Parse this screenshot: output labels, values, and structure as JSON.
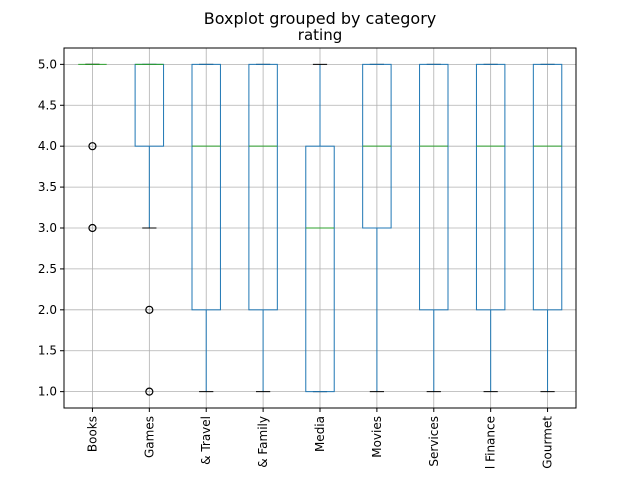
{
  "chart_data": {
    "type": "boxplot",
    "suptitle": "Boxplot grouped by category",
    "title": "rating",
    "xlabel": "",
    "ylabel": "",
    "ylim": [
      0.8,
      5.2
    ],
    "yticks": [
      "1.0",
      "1.5",
      "2.0",
      "2.5",
      "3.0",
      "3.5",
      "4.0",
      "4.5",
      "5.0"
    ],
    "grid": true,
    "categories": [
      "Books",
      "Games",
      "& Travel",
      "& Family",
      "Media",
      "Movies",
      "Services",
      "l Finance",
      "Gourmet"
    ],
    "boxes": [
      {
        "category": "Books",
        "whisker_low": 5,
        "q1": 5,
        "median": 5,
        "q3": 5,
        "whisker_high": 5,
        "outliers": [
          4,
          3
        ]
      },
      {
        "category": "Games",
        "whisker_low": 3,
        "q1": 4,
        "median": 5,
        "q3": 5,
        "whisker_high": 5,
        "outliers": [
          2,
          1
        ]
      },
      {
        "category": "& Travel",
        "whisker_low": 1,
        "q1": 2,
        "median": 4,
        "q3": 5,
        "whisker_high": 5,
        "outliers": []
      },
      {
        "category": "& Family",
        "whisker_low": 1,
        "q1": 2,
        "median": 4,
        "q3": 5,
        "whisker_high": 5,
        "outliers": []
      },
      {
        "category": "Media",
        "whisker_low": 1,
        "q1": 1,
        "median": 3,
        "q3": 4,
        "whisker_high": 5,
        "outliers": []
      },
      {
        "category": "Movies",
        "whisker_low": 1,
        "q1": 3,
        "median": 4,
        "q3": 5,
        "whisker_high": 5,
        "outliers": []
      },
      {
        "category": "Services",
        "whisker_low": 1,
        "q1": 2,
        "median": 4,
        "q3": 5,
        "whisker_high": 5,
        "outliers": []
      },
      {
        "category": "l Finance",
        "whisker_low": 1,
        "q1": 2,
        "median": 4,
        "q3": 5,
        "whisker_high": 5,
        "outliers": []
      },
      {
        "category": "Gourmet",
        "whisker_low": 1,
        "q1": 2,
        "median": 4,
        "q3": 5,
        "whisker_high": 5,
        "outliers": []
      }
    ],
    "colors": {
      "box": "#1f77b4",
      "median": "#2ca02c",
      "whisker_cap": "#000000",
      "outlier": "#000000",
      "grid": "#b0b0b0"
    }
  }
}
